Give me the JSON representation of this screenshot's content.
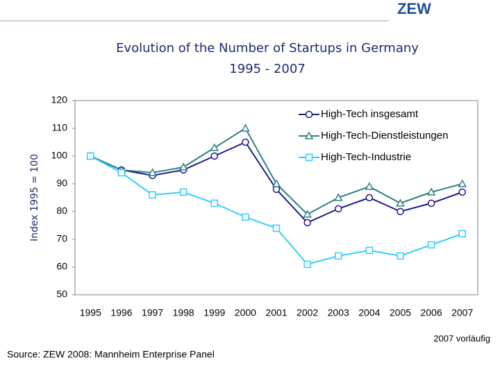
{
  "header": {
    "logo": "ZEW"
  },
  "chart_data": {
    "type": "line",
    "title": "Evolution of the Number of Startups in Germany",
    "subtitle": "1995 - 2007",
    "y_label": "Index 1995 = 100",
    "categories": [
      "1995",
      "1996",
      "1997",
      "1998",
      "1999",
      "2000",
      "2001",
      "2002",
      "2003",
      "2004",
      "2005",
      "2006",
      "2007"
    ],
    "series": [
      {
        "name": "High-Tech insgesamt",
        "color": "#1a1a8c",
        "marker": "circle",
        "values": [
          100,
          95,
          93,
          95,
          100,
          105,
          88,
          76,
          81,
          85,
          80,
          83,
          87
        ]
      },
      {
        "name": "High-Tech-Dienstleistungen",
        "color": "#2e8080",
        "marker": "triangle",
        "values": [
          100,
          95,
          94,
          96,
          103,
          110,
          90,
          79,
          85,
          89,
          83,
          87,
          90
        ]
      },
      {
        "name": "High-Tech-Industrie",
        "color": "#33ccff",
        "marker": "square",
        "values": [
          100,
          94,
          86,
          87,
          83,
          78,
          74,
          61,
          64,
          66,
          64,
          68,
          72
        ]
      }
    ],
    "ylim": [
      50,
      120
    ],
    "yticks": [
      50,
      60,
      70,
      80,
      90,
      100,
      110,
      120
    ],
    "grid": false,
    "legend": "top-right",
    "annotation": "2007 vorläufig",
    "source": "Source: ZEW 2008: Mannheim Enterprise Panel"
  }
}
